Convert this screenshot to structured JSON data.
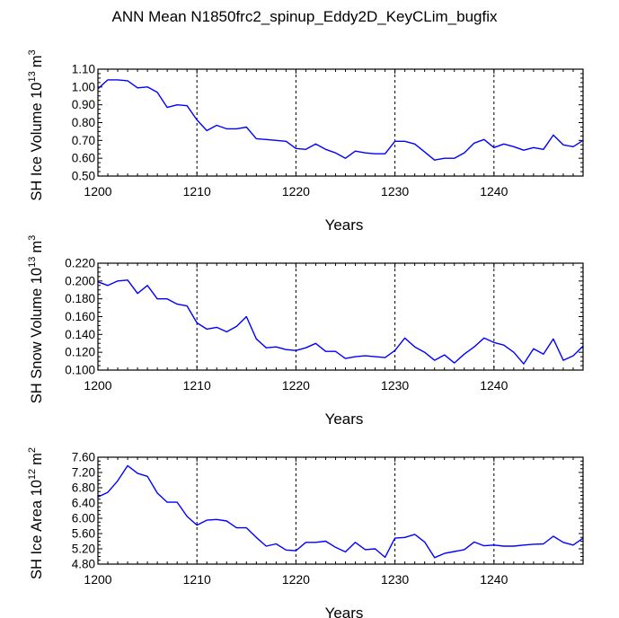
{
  "figure_title": "ANN Mean N1850frc2_spinup_Eddy2D_KeyCLim_bugfix",
  "colors": {
    "line": "#0000ff",
    "axis": "#000000",
    "grid": "#000000"
  },
  "chart_data": [
    {
      "type": "line",
      "title": "",
      "ylabel": {
        "main": "SH Ice Volume 10",
        "sup": "13",
        "unit": "m",
        "unit_sup": "3"
      },
      "xlabel": "Years",
      "xlim": [
        1200,
        1249
      ],
      "ylim": [
        0.5,
        1.1
      ],
      "xticks": [
        1200,
        1210,
        1220,
        1230,
        1240
      ],
      "xtick_labels": [
        "1200",
        "1210",
        "1220",
        "1230",
        "1240"
      ],
      "yticks": [
        0.5,
        0.6,
        0.7,
        0.8,
        0.9,
        1.0,
        1.1
      ],
      "ytick_labels": [
        "0.50",
        "0.60",
        "0.70",
        "0.80",
        "0.90",
        "1.00",
        "1.10"
      ],
      "grid": "vertical dashed at major x ticks",
      "x": [
        1200,
        1201,
        1202,
        1203,
        1204,
        1205,
        1206,
        1207,
        1208,
        1209,
        1210,
        1211,
        1212,
        1213,
        1214,
        1215,
        1216,
        1217,
        1218,
        1219,
        1220,
        1221,
        1222,
        1223,
        1224,
        1225,
        1226,
        1227,
        1228,
        1229,
        1230,
        1231,
        1232,
        1233,
        1234,
        1235,
        1236,
        1237,
        1238,
        1239,
        1240,
        1241,
        1242,
        1243,
        1244,
        1245,
        1246,
        1247,
        1248,
        1249
      ],
      "series": [
        {
          "name": "SH Ice Volume",
          "values": [
            0.99,
            1.04,
            1.04,
            1.035,
            0.995,
            1.0,
            0.97,
            0.885,
            0.9,
            0.895,
            0.815,
            0.755,
            0.785,
            0.765,
            0.765,
            0.775,
            0.71,
            0.705,
            0.7,
            0.695,
            0.655,
            0.65,
            0.68,
            0.65,
            0.63,
            0.6,
            0.64,
            0.63,
            0.625,
            0.625,
            0.695,
            0.695,
            0.68,
            0.635,
            0.59,
            0.6,
            0.6,
            0.63,
            0.685,
            0.705,
            0.66,
            0.68,
            0.665,
            0.645,
            0.66,
            0.65,
            0.73,
            0.675,
            0.665,
            0.7
          ]
        }
      ]
    },
    {
      "type": "line",
      "title": "",
      "ylabel": {
        "main": "SH Snow Volume 10",
        "sup": "13",
        "unit": "m",
        "unit_sup": "3"
      },
      "xlabel": "Years",
      "xlim": [
        1200,
        1249
      ],
      "ylim": [
        0.1,
        0.22
      ],
      "xticks": [
        1200,
        1210,
        1220,
        1230,
        1240
      ],
      "xtick_labels": [
        "1200",
        "1210",
        "1220",
        "1230",
        "1240"
      ],
      "yticks": [
        0.1,
        0.12,
        0.14,
        0.16,
        0.18,
        0.2,
        0.22
      ],
      "ytick_labels": [
        "0.100",
        "0.120",
        "0.140",
        "0.160",
        "0.180",
        "0.200",
        "0.220"
      ],
      "grid": "vertical dashed at major x ticks",
      "x": [
        1200,
        1201,
        1202,
        1203,
        1204,
        1205,
        1206,
        1207,
        1208,
        1209,
        1210,
        1211,
        1212,
        1213,
        1214,
        1215,
        1216,
        1217,
        1218,
        1219,
        1220,
        1221,
        1222,
        1223,
        1224,
        1225,
        1226,
        1227,
        1228,
        1229,
        1230,
        1231,
        1232,
        1233,
        1234,
        1235,
        1236,
        1237,
        1238,
        1239,
        1240,
        1241,
        1242,
        1243,
        1244,
        1245,
        1246,
        1247,
        1248,
        1249
      ],
      "series": [
        {
          "name": "SH Snow Volume",
          "values": [
            0.199,
            0.195,
            0.2,
            0.201,
            0.186,
            0.195,
            0.18,
            0.18,
            0.174,
            0.172,
            0.153,
            0.146,
            0.148,
            0.143,
            0.149,
            0.16,
            0.135,
            0.125,
            0.126,
            0.123,
            0.122,
            0.125,
            0.13,
            0.121,
            0.121,
            0.113,
            0.115,
            0.116,
            0.115,
            0.114,
            0.122,
            0.136,
            0.126,
            0.12,
            0.111,
            0.117,
            0.108,
            0.118,
            0.126,
            0.136,
            0.131,
            0.128,
            0.12,
            0.107,
            0.124,
            0.118,
            0.135,
            0.111,
            0.116,
            0.127
          ]
        }
      ]
    },
    {
      "type": "line",
      "title": "",
      "ylabel": {
        "main": "SH Ice Area 10",
        "sup": "12",
        "unit": "m",
        "unit_sup": "2"
      },
      "xlabel": "Years",
      "xlim": [
        1200,
        1249
      ],
      "ylim": [
        4.8,
        7.6
      ],
      "xticks": [
        1200,
        1210,
        1220,
        1230,
        1240
      ],
      "xtick_labels": [
        "1200",
        "1210",
        "1220",
        "1230",
        "1240"
      ],
      "yticks": [
        4.8,
        5.2,
        5.6,
        6.0,
        6.4,
        6.8,
        7.2,
        7.6
      ],
      "ytick_labels": [
        "4.80",
        "5.20",
        "5.60",
        "6.00",
        "6.40",
        "6.80",
        "7.20",
        "7.60"
      ],
      "grid": "vertical dashed at major x ticks",
      "x": [
        1200,
        1201,
        1202,
        1203,
        1204,
        1205,
        1206,
        1207,
        1208,
        1209,
        1210,
        1211,
        1212,
        1213,
        1214,
        1215,
        1216,
        1217,
        1218,
        1219,
        1220,
        1221,
        1222,
        1223,
        1224,
        1225,
        1226,
        1227,
        1228,
        1229,
        1230,
        1231,
        1232,
        1233,
        1234,
        1235,
        1236,
        1237,
        1238,
        1239,
        1240,
        1241,
        1242,
        1243,
        1244,
        1245,
        1246,
        1247,
        1248,
        1249
      ],
      "series": [
        {
          "name": "SH Ice Area",
          "values": [
            6.56,
            6.68,
            6.98,
            7.38,
            7.18,
            7.1,
            6.66,
            6.42,
            6.42,
            6.05,
            5.82,
            5.95,
            5.97,
            5.93,
            5.75,
            5.75,
            5.5,
            5.27,
            5.33,
            5.17,
            5.15,
            5.37,
            5.37,
            5.4,
            5.24,
            5.12,
            5.37,
            5.18,
            5.2,
            4.98,
            5.48,
            5.5,
            5.58,
            5.38,
            4.97,
            5.08,
            5.13,
            5.18,
            5.38,
            5.28,
            5.3,
            5.27,
            5.27,
            5.3,
            5.32,
            5.33,
            5.53,
            5.37,
            5.3,
            5.48
          ]
        }
      ]
    }
  ]
}
